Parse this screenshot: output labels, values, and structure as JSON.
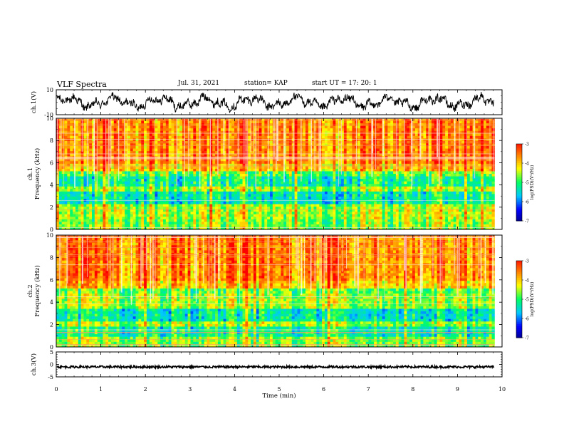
{
  "header": {
    "title": "VLF Spectra",
    "date": "Jul. 31, 2021",
    "station": "station= KAP",
    "start": "start  UT =   17: 20: 1"
  },
  "chart_data": [
    {
      "type": "line",
      "title": "",
      "xlabel": "",
      "ylabel": "ch.1(V)",
      "xlim": [
        0,
        10
      ],
      "ylim": [
        -10,
        10
      ],
      "yticks": [
        "10",
        "-10"
      ],
      "series": [
        {
          "x": [
            0,
            0.5,
            1,
            1.5,
            2,
            2.5,
            3,
            3.5,
            4,
            4.5,
            5,
            5.5,
            6,
            6.5,
            7,
            7.5,
            8,
            8.5,
            9,
            9.5,
            9.83
          ],
          "values": [
            2,
            -3,
            1,
            -2,
            3,
            0,
            -4,
            2,
            -1,
            3,
            -2,
            1,
            -3,
            2,
            0,
            -2,
            3,
            -1,
            2,
            -3,
            1
          ]
        }
      ]
    },
    {
      "type": "heatmap",
      "title": "",
      "xlabel": "",
      "ylabel": "ch.1\nFrequency (kHz)",
      "xlim": [
        0,
        10
      ],
      "ylim": [
        0,
        10
      ],
      "yticks": [
        "0",
        "2",
        "4",
        "6",
        "8",
        "10"
      ],
      "colorbar": {
        "label": "log(PSD)(V²/Hz)",
        "range": [
          -7,
          -3
        ],
        "ticks": [
          "-3",
          "-4",
          "-5",
          "-6",
          "-7"
        ]
      },
      "data_extent_minutes": 9.83
    },
    {
      "type": "heatmap",
      "title": "",
      "xlabel": "",
      "ylabel": "ch.2\nFrequency (kHz)",
      "xlim": [
        0,
        10
      ],
      "ylim": [
        0,
        10
      ],
      "yticks": [
        "0",
        "2",
        "4",
        "6",
        "8",
        "10"
      ],
      "colorbar": {
        "label": "log(PSD)(V²/Hz)",
        "range": [
          -7,
          -3
        ],
        "ticks": [
          "-3",
          "-4",
          "-5",
          "-6",
          "-7"
        ]
      },
      "data_extent_minutes": 9.83
    },
    {
      "type": "line",
      "title": "",
      "xlabel": "Time (min)",
      "ylabel": "ch.3(V)",
      "xlim": [
        0,
        10
      ],
      "ylim": [
        -5,
        5
      ],
      "yticks": [
        "5",
        "0",
        "-5"
      ],
      "xticks": [
        "0",
        "1",
        "2",
        "3",
        "4",
        "5",
        "6",
        "7",
        "8",
        "9",
        "10"
      ],
      "series": [
        {
          "x": [
            0,
            9.83
          ],
          "values": [
            -1,
            -1
          ]
        }
      ]
    }
  ],
  "colors": {
    "colormap": [
      "#000080",
      "#0000ff",
      "#00c8ff",
      "#00ff60",
      "#ffff00",
      "#ff8000",
      "#ff0000",
      "#ffffff"
    ]
  }
}
